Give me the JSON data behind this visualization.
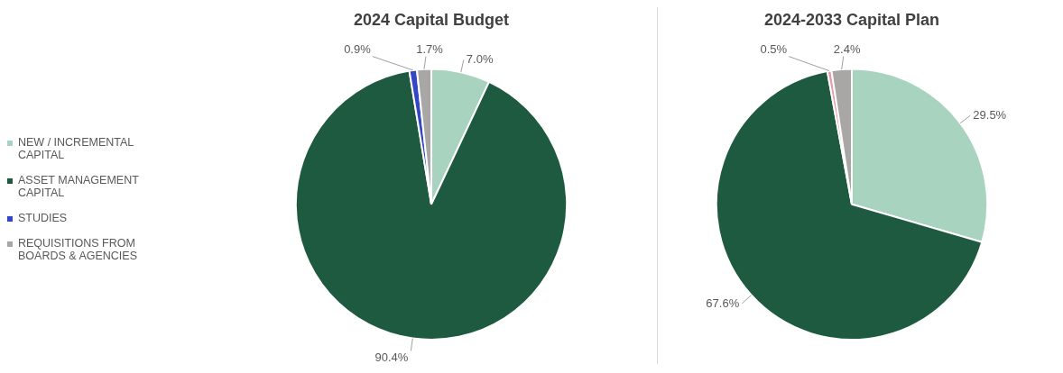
{
  "chart_data": [
    {
      "type": "pie",
      "title": "2024 Capital Budget",
      "categories": [
        "NEW / INCREMENTAL CAPITAL",
        "ASSET MANAGEMENT CAPITAL",
        "STUDIES",
        "REQUISITIONS FROM BOARDS & AGENCIES"
      ],
      "values": [
        7.0,
        90.4,
        0.9,
        1.7
      ],
      "value_labels": [
        "7.0%",
        "90.4%",
        "0.9%",
        "1.7%"
      ],
      "colors": [
        "#a8d4bf",
        "#1d5a3f",
        "#3346c4",
        "#a9a6a6"
      ],
      "legend": "left"
    },
    {
      "type": "pie",
      "title": "2024-2033 Capital Plan",
      "categories": [
        null,
        null,
        null,
        null
      ],
      "values": [
        29.5,
        67.6,
        0.5,
        2.4
      ],
      "value_labels": [
        "29.5%",
        "67.6%",
        "0.5%",
        "2.4%"
      ],
      "colors": [
        "#a8d4bf",
        "#1d5a3f",
        "#e89aa8",
        "#a9a6a6"
      ]
    }
  ]
}
